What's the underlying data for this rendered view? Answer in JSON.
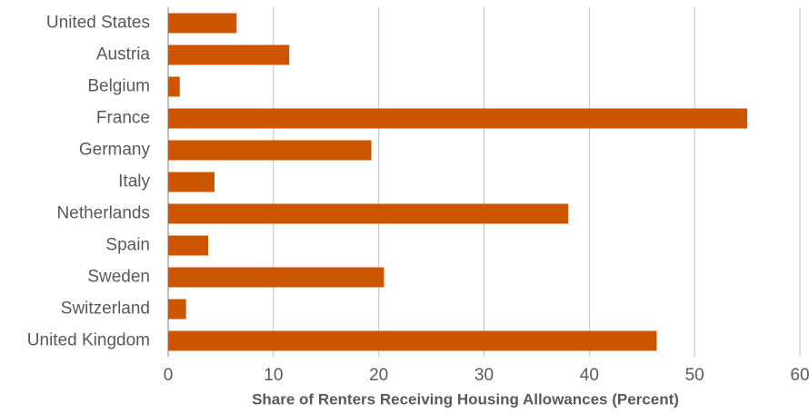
{
  "chart_data": {
    "type": "barh",
    "x_label": "Share of Renters Receiving Housing Allowances (Percent)",
    "categories": [
      "United States",
      "Austria",
      "Belgium",
      "France",
      "Germany",
      "Italy",
      "Netherlands",
      "Spain",
      "Sweden",
      "Switzerland",
      "United Kingdom"
    ],
    "values": [
      6.5,
      11.5,
      1.1,
      55.0,
      19.3,
      4.4,
      38.0,
      3.8,
      20.5,
      1.7,
      46.4
    ],
    "color": "#cc5500",
    "xlim": [
      0,
      60
    ],
    "xticks": [
      0,
      10,
      20,
      30,
      40,
      50,
      60
    ],
    "grid": true
  }
}
